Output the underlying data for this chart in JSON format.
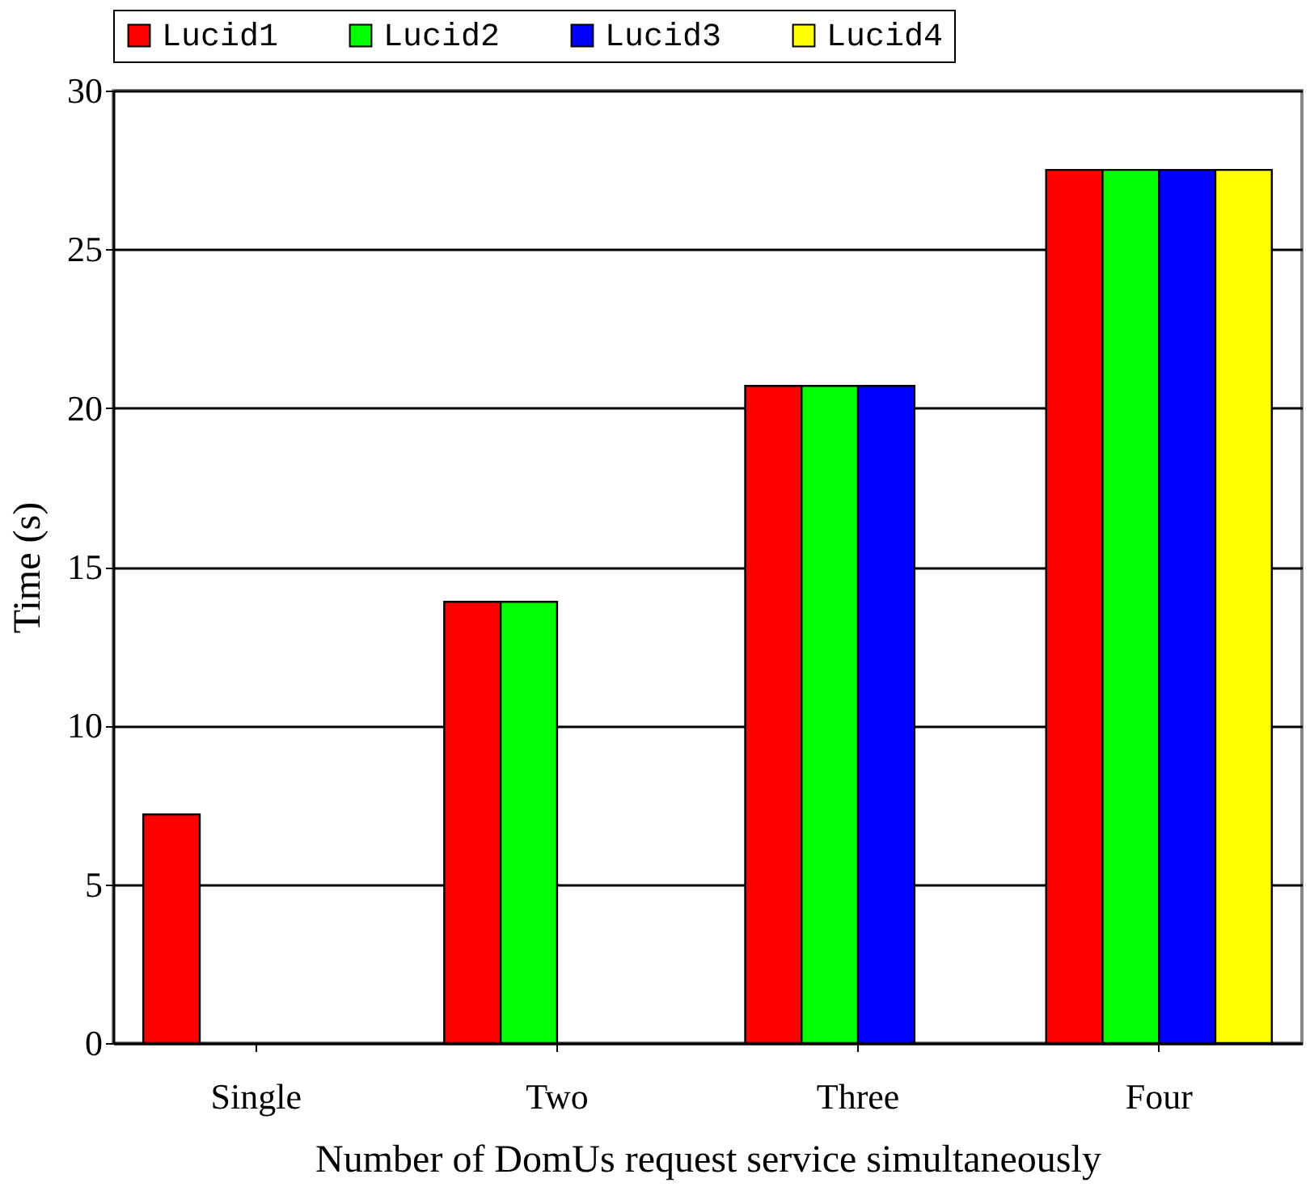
{
  "chart_data": {
    "type": "bar",
    "xlabel": "Number of DomUs request service simultaneously",
    "ylabel": "Time (s)",
    "categories": [
      "Single",
      "Two",
      "Three",
      "Four"
    ],
    "series": [
      {
        "name": "Lucid1",
        "color": "#ff0000",
        "values": [
          7.2,
          13.9,
          20.7,
          27.5
        ]
      },
      {
        "name": "Lucid2",
        "color": "#00ff00",
        "values": [
          null,
          13.9,
          20.7,
          27.5
        ]
      },
      {
        "name": "Lucid3",
        "color": "#0000ff",
        "values": [
          null,
          null,
          20.7,
          27.5
        ]
      },
      {
        "name": "Lucid4",
        "color": "#ffff00",
        "values": [
          null,
          null,
          null,
          27.5
        ]
      }
    ],
    "ylim": [
      0,
      30
    ],
    "yticks": [
      0,
      5,
      10,
      15,
      20,
      25,
      30
    ],
    "grid": "y",
    "legend": "top"
  }
}
